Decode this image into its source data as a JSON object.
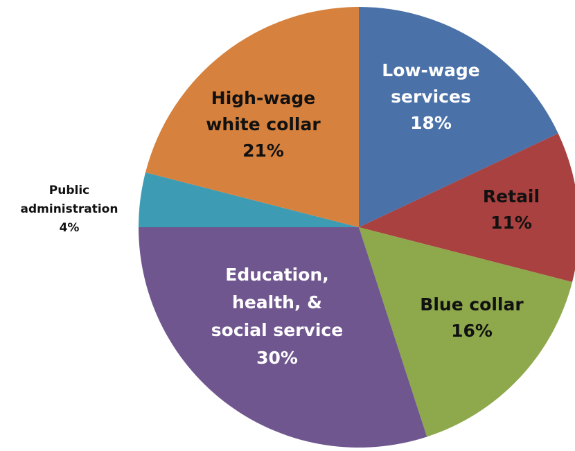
{
  "chart_data": {
    "type": "pie",
    "title": "",
    "start_angle_deg": 0,
    "direction": "clockwise",
    "slices": [
      {
        "label_lines": [
          "Low-wage",
          "services",
          "18%"
        ],
        "value": 18,
        "color": "#4a71a8",
        "label_color": "#ffffff"
      },
      {
        "label_lines": [
          "Retail",
          "11%"
        ],
        "value": 11,
        "color": "#a8413f",
        "label_color": "#111111"
      },
      {
        "label_lines": [
          "Blue collar",
          "16%"
        ],
        "value": 16,
        "color": "#8ea84c",
        "label_color": "#111111"
      },
      {
        "label_lines": [
          "Education,",
          "health, &",
          "social service",
          "30%"
        ],
        "value": 30,
        "color": "#70568f",
        "label_color": "#ffffff"
      },
      {
        "label_lines": [
          "Public",
          "administration",
          "4%"
        ],
        "value": 4,
        "color": "#3d9cb3",
        "label_color": "#111111"
      },
      {
        "label_lines": [
          "High-wage",
          "white collar",
          "21%"
        ],
        "value": 21,
        "color": "#d6813d",
        "label_color": "#111111"
      }
    ]
  }
}
